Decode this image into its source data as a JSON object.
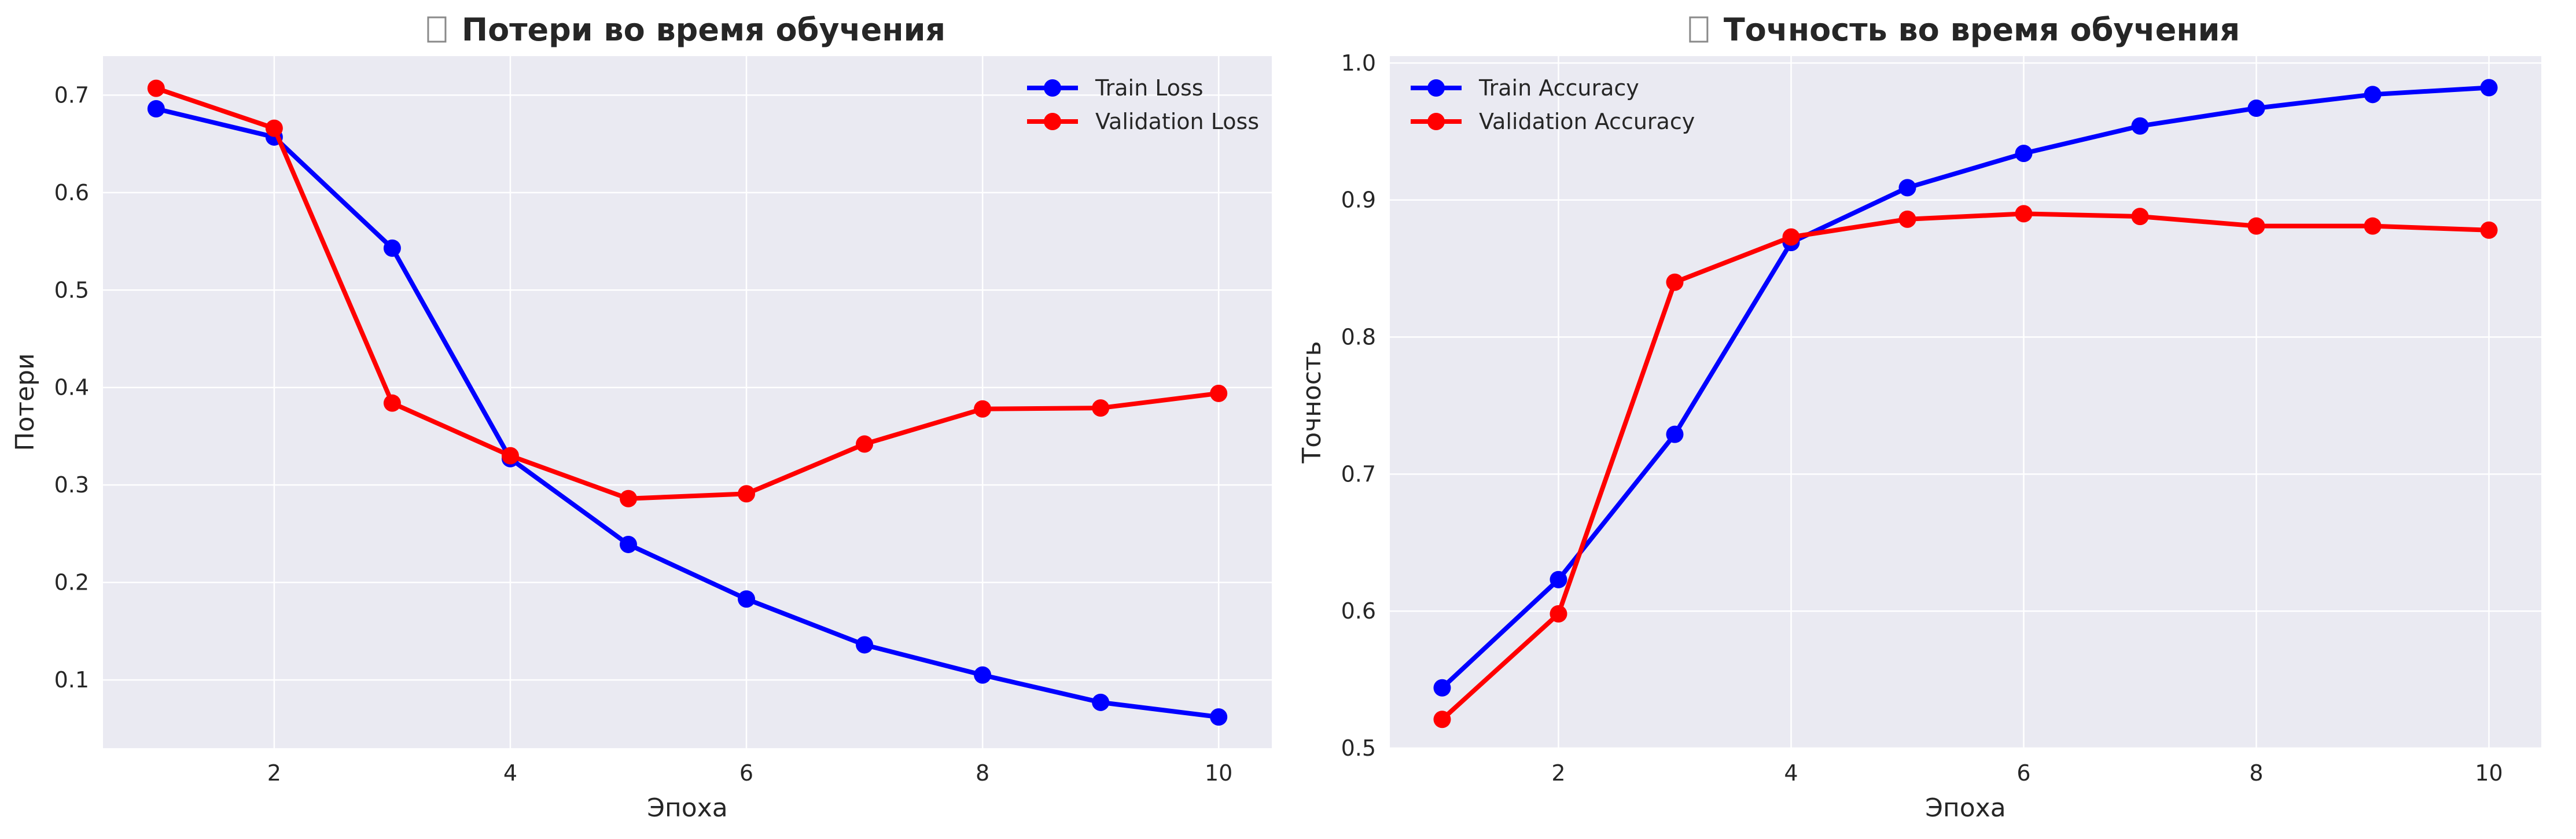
{
  "chart_data": [
    {
      "type": "line",
      "title": "Потери во время обучения",
      "title_icon": "missing-glyph-box",
      "xlabel": "Эпоха",
      "ylabel": "Потери",
      "x": [
        1,
        2,
        3,
        4,
        5,
        6,
        7,
        8,
        9,
        10
      ],
      "xlim": [
        0.55,
        10.45
      ],
      "ylim": [
        0.03,
        0.74
      ],
      "xticks": [
        2,
        4,
        6,
        8,
        10
      ],
      "yticks": [
        0.1,
        0.2,
        0.3,
        0.4,
        0.5,
        0.6,
        0.7
      ],
      "ytick_labels": [
        "0.1",
        "0.2",
        "0.3",
        "0.4",
        "0.5",
        "0.6",
        "0.7"
      ],
      "grid": true,
      "legend_position": "top-right",
      "series": [
        {
          "name": "Train Loss",
          "color": "#0000ff",
          "marker": "circle",
          "values": [
            0.686,
            0.657,
            0.543,
            0.327,
            0.239,
            0.183,
            0.136,
            0.105,
            0.077,
            0.062
          ]
        },
        {
          "name": "Validation Loss",
          "color": "#ff0000",
          "marker": "circle",
          "values": [
            0.707,
            0.666,
            0.384,
            0.33,
            0.286,
            0.291,
            0.342,
            0.378,
            0.379,
            0.394
          ]
        }
      ]
    },
    {
      "type": "line",
      "title": "Точность во время обучения",
      "title_icon": "missing-glyph-box",
      "xlabel": "Эпоха",
      "ylabel": "Точность",
      "x": [
        1,
        2,
        3,
        4,
        5,
        6,
        7,
        8,
        9,
        10
      ],
      "xlim": [
        0.55,
        10.45
      ],
      "ylim": [
        0.5,
        1.005
      ],
      "xticks": [
        2,
        4,
        6,
        8,
        10
      ],
      "yticks": [
        0.5,
        0.6,
        0.7,
        0.8,
        0.9,
        1.0
      ],
      "ytick_labels": [
        "0.5",
        "0.6",
        "0.7",
        "0.8",
        "0.9",
        "1.0"
      ],
      "grid": true,
      "legend_position": "top-left",
      "series": [
        {
          "name": "Train Accuracy",
          "color": "#0000ff",
          "marker": "circle",
          "values": [
            0.544,
            0.623,
            0.729,
            0.869,
            0.909,
            0.934,
            0.954,
            0.967,
            0.977,
            0.982
          ]
        },
        {
          "name": "Validation Accuracy",
          "color": "#ff0000",
          "marker": "circle",
          "values": [
            0.521,
            0.598,
            0.84,
            0.873,
            0.886,
            0.89,
            0.888,
            0.881,
            0.881,
            0.878
          ]
        }
      ]
    }
  ]
}
